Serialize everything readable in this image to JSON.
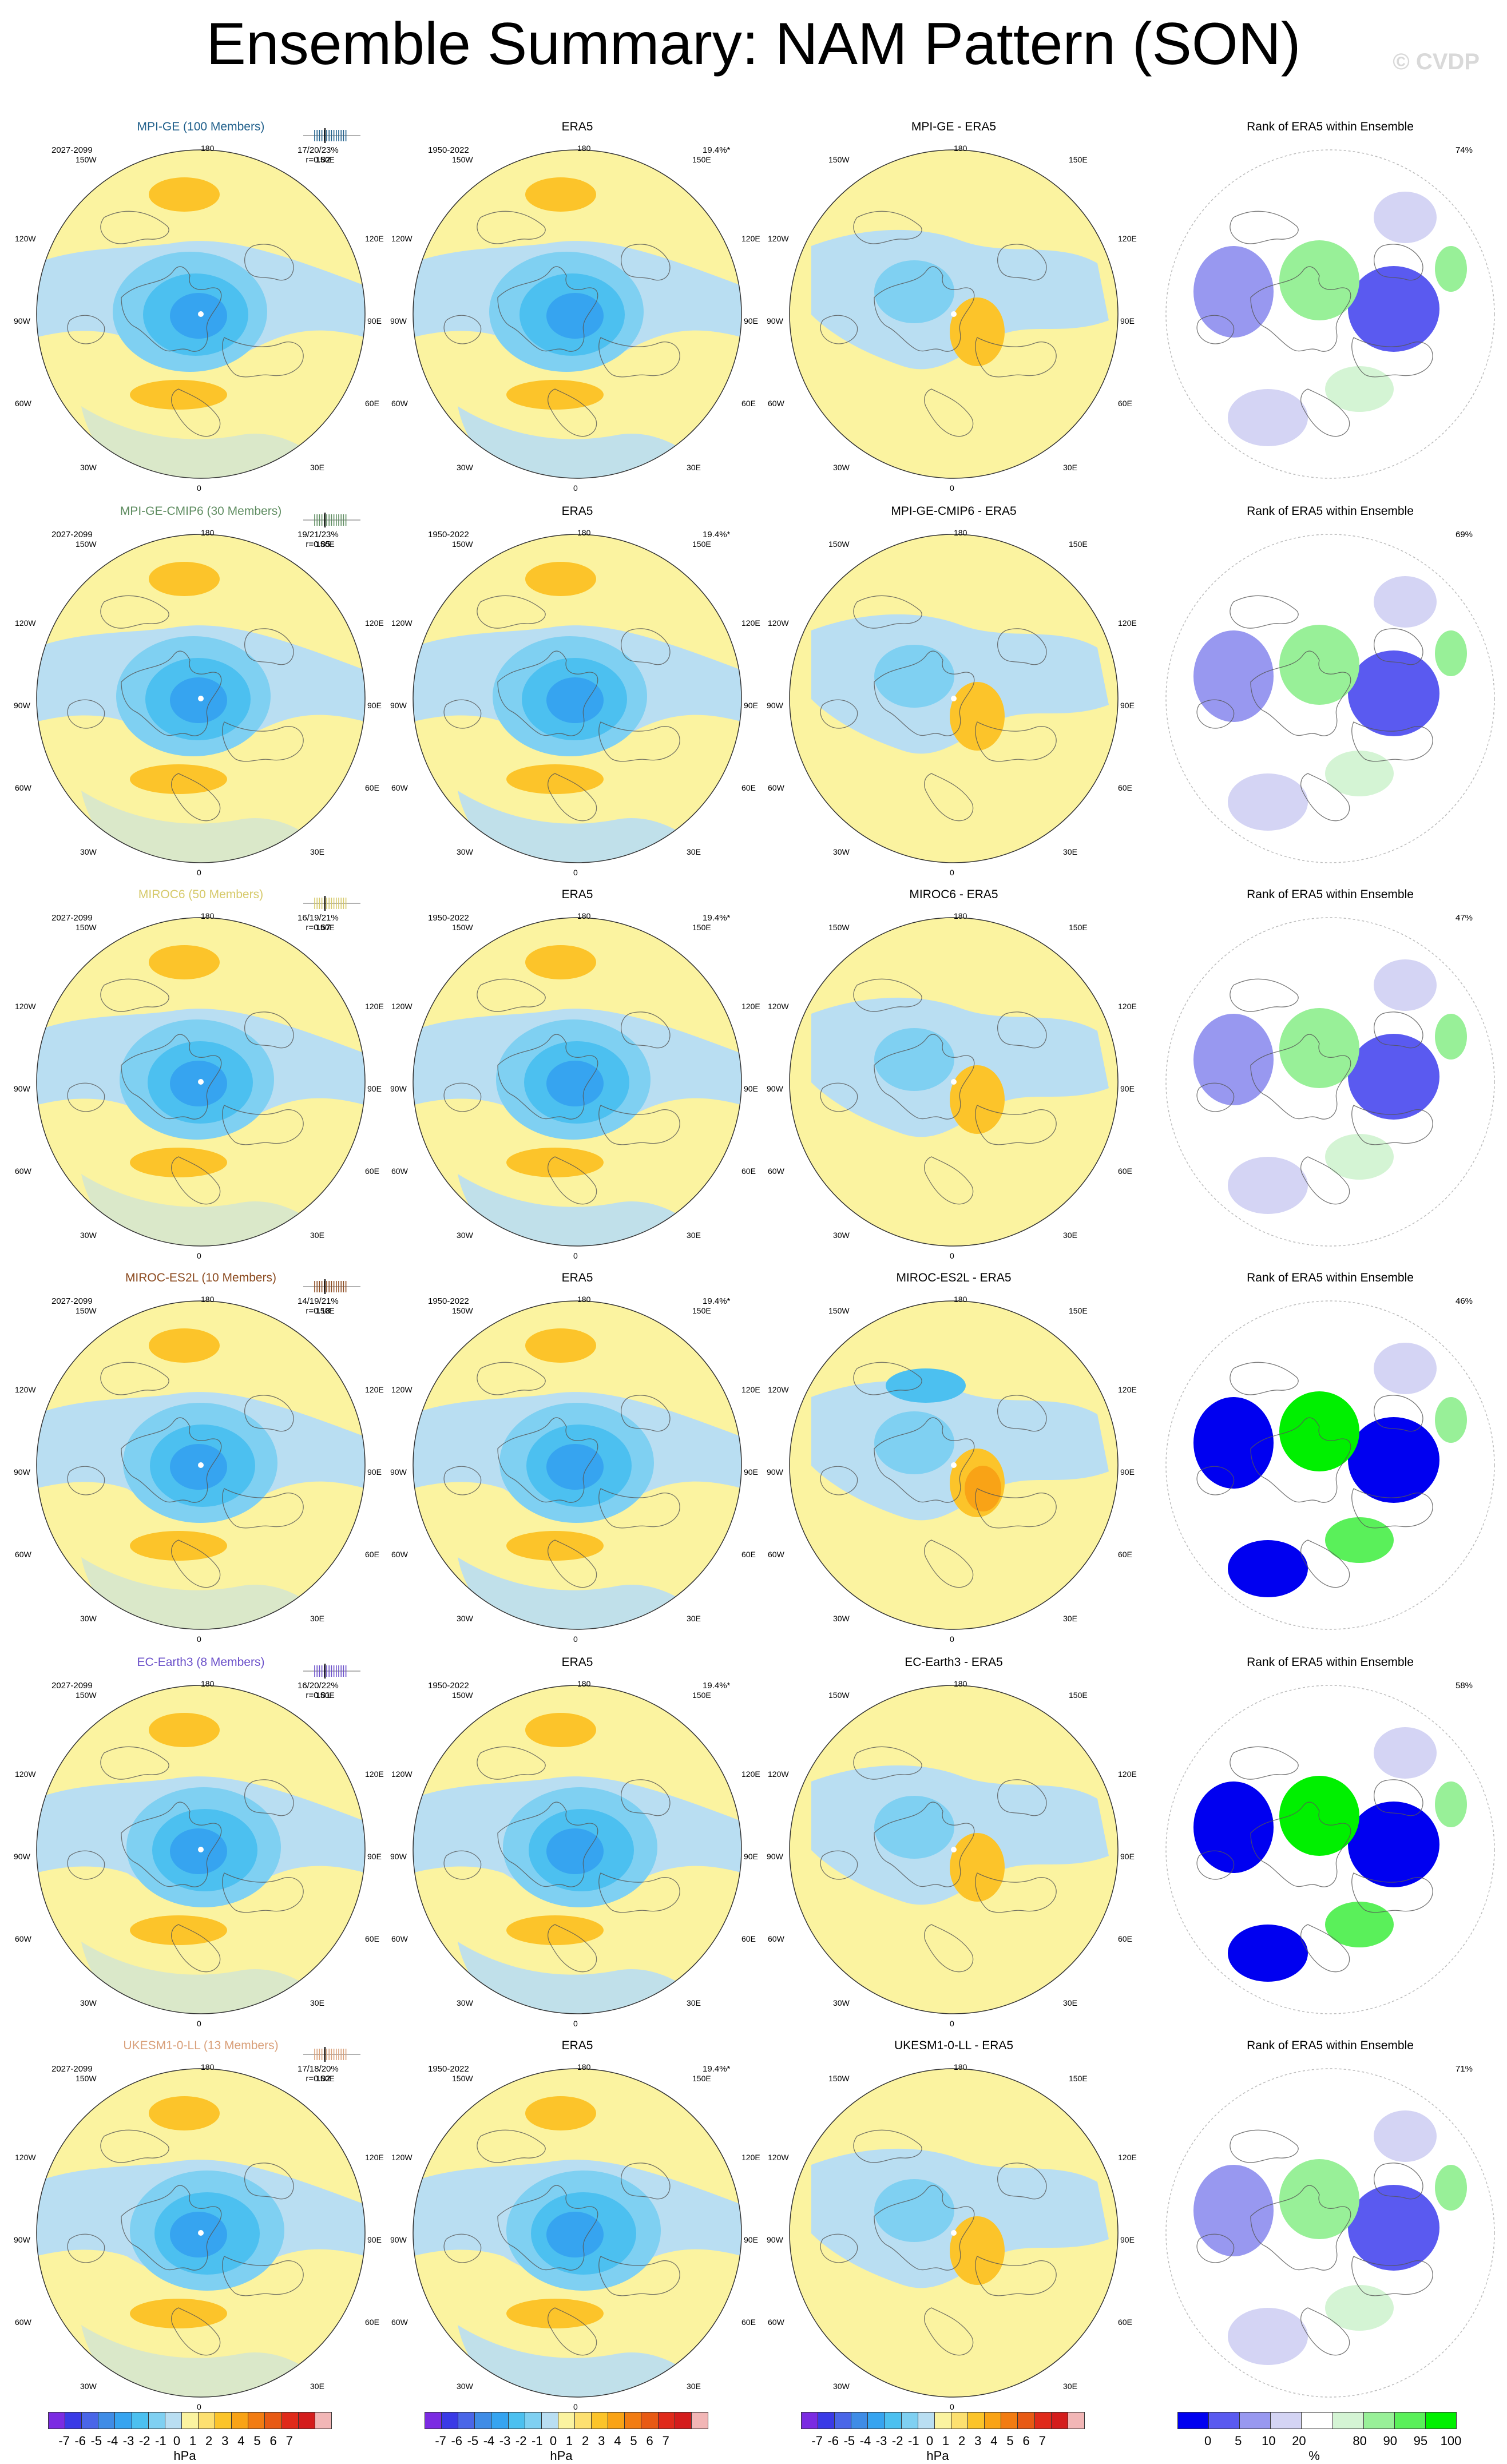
{
  "title": "Ensemble Summary: NAM Pattern (SON)",
  "credit": "© CVDP",
  "axis_labels": {
    "top": "180",
    "left": "90W",
    "right": "90E",
    "bottom": "0",
    "upper_left": "150W",
    "upper_right": "150E",
    "mid_upper_left": "120W",
    "mid_upper_right": "120E",
    "mid_lower_left": "60W",
    "mid_lower_right": "60E",
    "lower_left": "30W",
    "lower_right": "30E"
  },
  "rows": [
    {
      "model": "MPI-GE (100 Members)",
      "model_color": "#1f5f8b",
      "model_period": "2027-2099",
      "stats": "17/20/23%",
      "corr": "r=0.82",
      "bar_labels": "0.1 1.0",
      "obs_title": "ERA5",
      "obs_period": "1950-2022",
      "obs_pct": "19.4%*",
      "diff_title": "MPI-GE - ERA5",
      "rank_title": "Rank of ERA5 within Ensemble",
      "rank_pct": "74%"
    },
    {
      "model": "MPI-GE-CMIP6 (30 Members)",
      "model_color": "#5e8c60",
      "model_period": "2027-2099",
      "stats": "19/21/23%",
      "corr": "r=0.85",
      "bar_labels": "",
      "obs_title": "ERA5",
      "obs_period": "1950-2022",
      "obs_pct": "19.4%*",
      "diff_title": "MPI-GE-CMIP6 - ERA5",
      "rank_title": "Rank of ERA5 within Ensemble",
      "rank_pct": "69%"
    },
    {
      "model": "MIROC6 (50 Members)",
      "model_color": "#d6c96a",
      "model_period": "2027-2099",
      "stats": "16/19/21%",
      "corr": "r=0.67",
      "bar_labels": "",
      "obs_title": "ERA5",
      "obs_period": "1950-2022",
      "obs_pct": "19.4%*",
      "diff_title": "MIROC6 - ERA5",
      "rank_title": "Rank of ERA5 within Ensemble",
      "rank_pct": "47%"
    },
    {
      "model": "MIROC-ES2L (10 Members)",
      "model_color": "#8b4a1f",
      "model_period": "2027-2099",
      "stats": "14/19/21%",
      "corr": "r=0.18",
      "bar_labels": "",
      "obs_title": "ERA5",
      "obs_period": "1950-2022",
      "obs_pct": "19.4%*",
      "diff_title": "MIROC-ES2L - ERA5",
      "rank_title": "Rank of ERA5 within Ensemble",
      "rank_pct": "46%"
    },
    {
      "model": "EC-Earth3 (8 Members)",
      "model_color": "#6a4fc9",
      "model_period": "2027-2099",
      "stats": "16/20/22%",
      "corr": "r=0.81",
      "bar_labels": "",
      "obs_title": "ERA5",
      "obs_period": "1950-2022",
      "obs_pct": "19.4%*",
      "diff_title": "EC-Earth3 - ERA5",
      "rank_title": "Rank of ERA5 within Ensemble",
      "rank_pct": "58%"
    },
    {
      "model": "UKESM1-0-LL (13 Members)",
      "model_color": "#d9a07a",
      "model_period": "2027-2099",
      "stats": "17/18/20%",
      "corr": "r=0.82",
      "bar_labels": "",
      "obs_title": "ERA5",
      "obs_period": "1950-2022",
      "obs_pct": "19.4%*",
      "diff_title": "UKESM1-0-LL - ERA5",
      "rank_title": "Rank of ERA5 within Ensemble",
      "rank_pct": "71%"
    }
  ],
  "pattern_colorbar": {
    "unit": "hPa",
    "ticks": [
      "-7",
      "-6",
      "-5",
      "-4",
      "-3",
      "-2",
      "-1",
      "0",
      "1",
      "2",
      "3",
      "4",
      "5",
      "6",
      "7"
    ],
    "colors": [
      "#7b2be2",
      "#3a3ae6",
      "#4a66e8",
      "#3f8ce6",
      "#36a4f0",
      "#4cc0f0",
      "#7fd0f2",
      "#b9def2",
      "#fbf3a0",
      "#fde070",
      "#fcc42a",
      "#f9a316",
      "#f27c12",
      "#e85a14",
      "#e02a1a",
      "#d41c1c",
      "#f2b6b6"
    ]
  },
  "rank_colorbar": {
    "unit": "%",
    "ticks": [
      "0",
      "5",
      "10",
      "20",
      "80",
      "90",
      "95",
      "100"
    ],
    "colors": [
      "#0000f0",
      "#5a5af0",
      "#9898f0",
      "#d4d4f4",
      "#ffffff",
      "#d4f4d4",
      "#98f098",
      "#5af05a",
      "#00f000"
    ]
  }
}
